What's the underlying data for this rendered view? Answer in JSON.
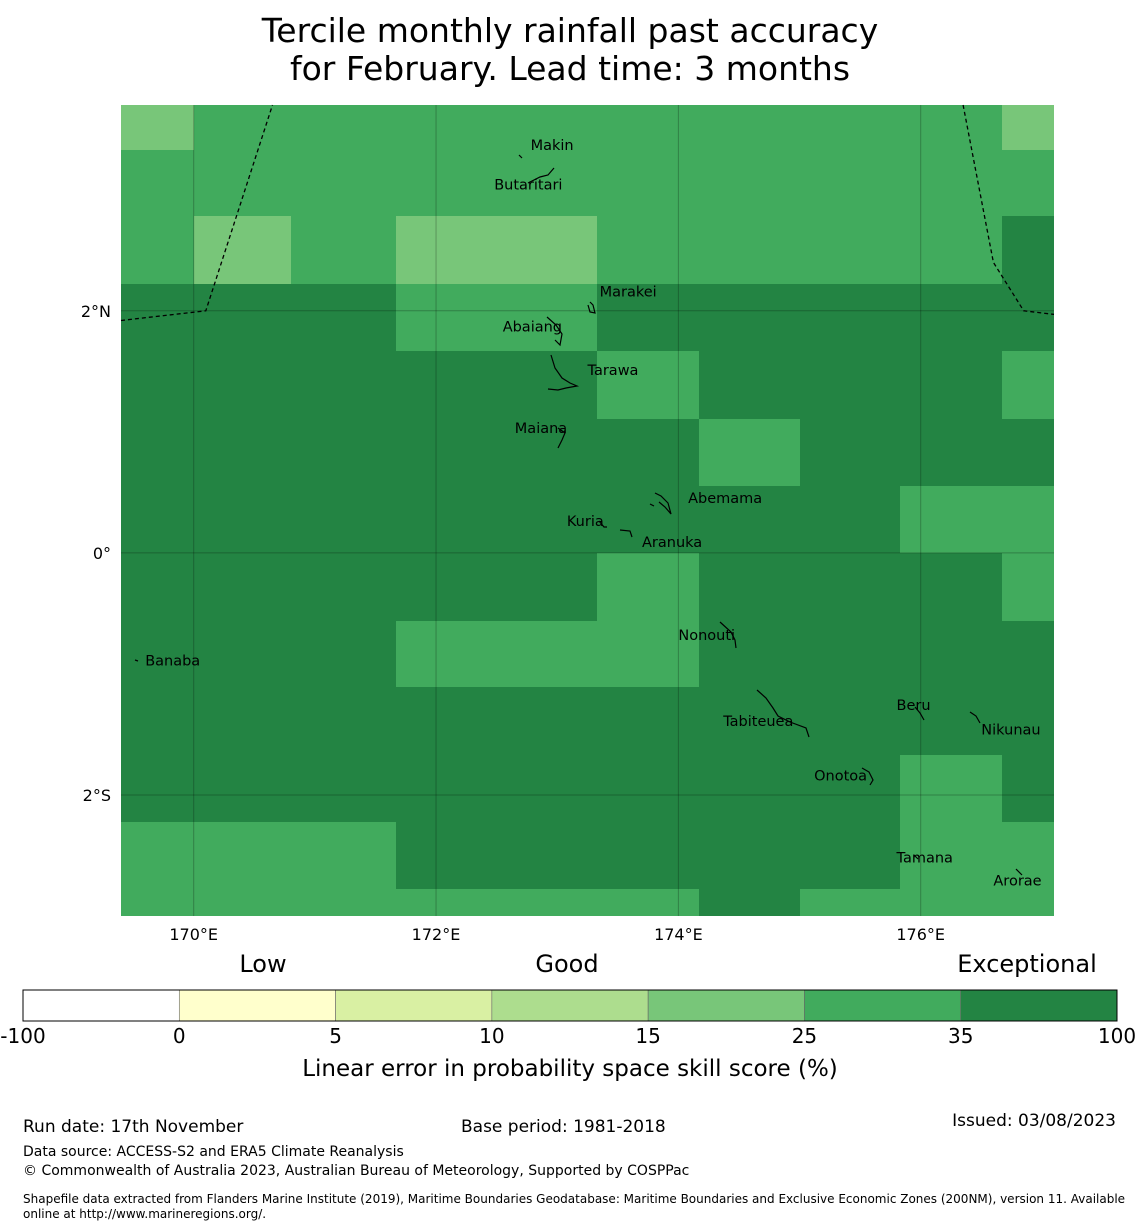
{
  "title": {
    "line1": "Tercile monthly rainfall past accuracy",
    "line2": "for February. Lead time: 3 months"
  },
  "map": {
    "lon_range": [
      169.4,
      177.1
    ],
    "lat_range": [
      -3.0,
      3.7
    ],
    "lon_ticks": [
      170,
      172,
      174,
      176
    ],
    "lon_tick_labels": [
      "170°E",
      "172°E",
      "174°E",
      "176°E"
    ],
    "lat_ticks": [
      2,
      0,
      -2
    ],
    "lat_tick_labels": [
      "2°N",
      "0°",
      "2°S"
    ],
    "grid_colors": {
      "1": "#78c679",
      "2": "#41ab5d",
      "3": "#238443"
    },
    "cell_columns_lon": [
      169.4,
      170.0,
      170.8,
      171.67,
      172.5,
      173.33,
      174.17,
      175.0,
      175.83,
      176.67,
      177.1
    ],
    "cell_rows_lat": [
      3.7,
      3.33,
      2.78,
      2.22,
      1.67,
      1.11,
      0.55,
      0.0,
      -0.56,
      -1.11,
      -1.67,
      -2.22,
      -2.78,
      -3.0
    ],
    "cells": [
      [
        1,
        2,
        2,
        2,
        2,
        2,
        2,
        2,
        2,
        1
      ],
      [
        2,
        2,
        2,
        2,
        2,
        2,
        2,
        2,
        2,
        2
      ],
      [
        2,
        1,
        2,
        1,
        1,
        2,
        2,
        2,
        2,
        3
      ],
      [
        3,
        3,
        3,
        2,
        2,
        3,
        3,
        3,
        3,
        3
      ],
      [
        3,
        3,
        3,
        3,
        3,
        2,
        3,
        3,
        3,
        2
      ],
      [
        3,
        3,
        3,
        3,
        3,
        3,
        2,
        3,
        3,
        3
      ],
      [
        3,
        3,
        3,
        3,
        3,
        3,
        3,
        3,
        2,
        2
      ],
      [
        3,
        3,
        3,
        3,
        3,
        2,
        3,
        3,
        3,
        2
      ],
      [
        3,
        3,
        3,
        2,
        2,
        2,
        3,
        3,
        3,
        3
      ],
      [
        3,
        3,
        3,
        3,
        3,
        3,
        3,
        3,
        3,
        3
      ],
      [
        3,
        3,
        3,
        3,
        3,
        3,
        3,
        3,
        2,
        3
      ],
      [
        2,
        2,
        2,
        3,
        3,
        3,
        3,
        3,
        2,
        2
      ],
      [
        2,
        2,
        2,
        2,
        2,
        2,
        3,
        2,
        2,
        2
      ]
    ],
    "boundary_west": [
      [
        169.4,
        1.92
      ],
      [
        170.1,
        2.0
      ],
      [
        170.65,
        3.7
      ]
    ],
    "boundary_east": [
      [
        176.35,
        3.7
      ],
      [
        176.6,
        2.4
      ],
      [
        176.85,
        2.0
      ],
      [
        177.1,
        1.97
      ]
    ],
    "places": [
      {
        "name": "Makin",
        "lon": 172.78,
        "lat": 3.33
      },
      {
        "name": "Butaritari",
        "lon": 172.48,
        "lat": 3.0
      },
      {
        "name": "Marakei",
        "lon": 173.35,
        "lat": 2.12
      },
      {
        "name": "Abaiang",
        "lon": 172.55,
        "lat": 1.83
      },
      {
        "name": "Tarawa",
        "lon": 173.25,
        "lat": 1.47
      },
      {
        "name": "Maiana",
        "lon": 172.65,
        "lat": 0.99
      },
      {
        "name": "Abemama",
        "lon": 174.08,
        "lat": 0.41
      },
      {
        "name": "Kuria",
        "lon": 173.08,
        "lat": 0.22
      },
      {
        "name": "Aranuka",
        "lon": 173.7,
        "lat": 0.05
      },
      {
        "name": "Banaba",
        "lon": 169.6,
        "lat": -0.93
      },
      {
        "name": "Nonouti",
        "lon": 174.0,
        "lat": -0.72
      },
      {
        "name": "Beru",
        "lon": 175.8,
        "lat": -1.3
      },
      {
        "name": "Tabiteuea",
        "lon": 174.37,
        "lat": -1.43
      },
      {
        "name": "Nikunau",
        "lon": 176.5,
        "lat": -1.5
      },
      {
        "name": "Onotoa",
        "lon": 175.12,
        "lat": -1.88
      },
      {
        "name": "Tamana",
        "lon": 175.8,
        "lat": -2.56
      },
      {
        "name": "Arorae",
        "lon": 176.6,
        "lat": -2.75
      }
    ]
  },
  "colorbar": {
    "categories": [
      {
        "label": "Low"
      },
      {
        "label": "Good"
      },
      {
        "label": "Exceptional"
      }
    ],
    "boundaries": [
      "-100",
      "0",
      "5",
      "10",
      "15",
      "25",
      "35",
      "100"
    ],
    "colors": [
      "#ffffff",
      "#ffffcc",
      "#d9f0a3",
      "#addd8e",
      "#78c679",
      "#41ab5d",
      "#238443"
    ],
    "label": "Linear error in probability space skill score (%)"
  },
  "footer": {
    "run_date": "Run date: 17th November",
    "base_period": "Base period: 1981-2018",
    "issued": "Issued: 03/08/2023",
    "data_source": "Data source: ACCESS-S2 and ERA5 Climate Reanalysis",
    "copyright": "© Commonwealth of Australia 2023, Australian Bureau of Meteorology, Supported by COSPPac",
    "shapefile_line1": "Shapefile data extracted from Flanders Marine Institute (2019), Maritime Boundaries Geodatabase: Maritime Boundaries and Exclusive Economic Zones (200NM), version 11. Available",
    "shapefile_line2": "online at http://www.marineregions.org/."
  }
}
